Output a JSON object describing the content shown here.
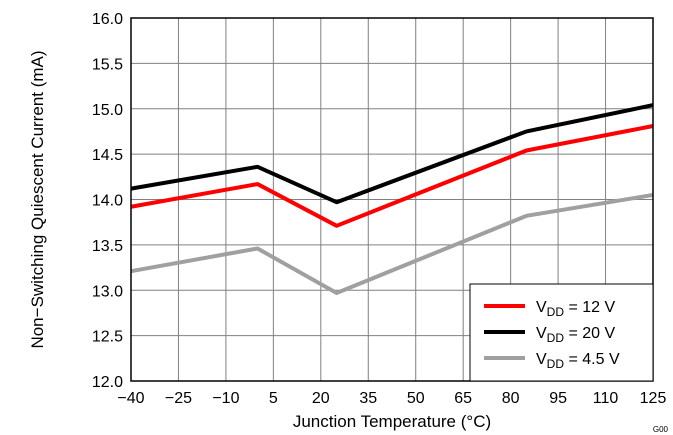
{
  "chart_data": {
    "type": "line",
    "xlabel": "Junction Temperature (°C)",
    "ylabel": "Non−Switching Quiescent Current (mA)",
    "figure_id": "G00",
    "x_ticks": [
      -40,
      -25,
      -10,
      5,
      20,
      35,
      50,
      65,
      80,
      95,
      110,
      125
    ],
    "y_ticks": [
      12.0,
      12.5,
      13.0,
      13.5,
      14.0,
      14.5,
      15.0,
      15.5,
      16.0
    ],
    "x_tick_labels": [
      "−40",
      "−25",
      "−10",
      "5",
      "20",
      "35",
      "50",
      "65",
      "80",
      "95",
      "110",
      "125"
    ],
    "y_tick_labels": [
      "12.0",
      "12.5",
      "13.0",
      "13.5",
      "14.0",
      "14.5",
      "15.0",
      "15.5",
      "16.0"
    ],
    "xlim": [
      -40,
      125
    ],
    "ylim": [
      12.0,
      16.0
    ],
    "grid": true,
    "legend_position": "bottom-right",
    "x": [
      -40,
      0,
      25,
      85,
      125
    ],
    "series": [
      {
        "name": "VDD = 12 V",
        "label_main": "V",
        "label_sub": "DD",
        "label_rest": " = 12 V",
        "color": "#ff0000",
        "values": [
          13.92,
          14.17,
          13.71,
          14.54,
          14.81
        ]
      },
      {
        "name": "VDD = 20 V",
        "label_main": "V",
        "label_sub": "DD",
        "label_rest": " = 20 V",
        "color": "#000000",
        "values": [
          14.12,
          14.36,
          13.97,
          14.75,
          15.04
        ]
      },
      {
        "name": "VDD = 4.5 V",
        "label_main": "V",
        "label_sub": "DD",
        "label_rest": " = 4.5 V",
        "color": "#a0a0a0",
        "values": [
          13.21,
          13.46,
          12.97,
          13.82,
          14.05
        ]
      }
    ]
  }
}
